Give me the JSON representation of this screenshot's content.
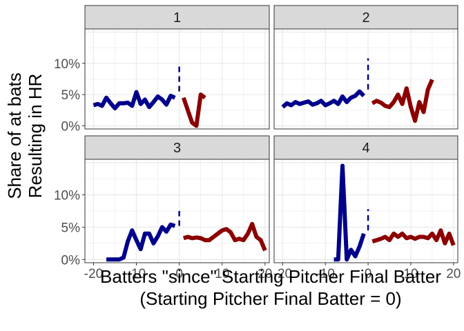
{
  "chart_data": {
    "type": "line",
    "facet_labels": [
      "1",
      "2",
      "3",
      "4"
    ],
    "xlabel_line1": "Batters \"since\" Starting Pitcher Final Batter",
    "xlabel_line2": "(Starting Pitcher Final Batter = 0)",
    "ylabel_line1": "Share of at bats",
    "ylabel_line2": "Resulting in HR",
    "xlim": [
      -22,
      21
    ],
    "ylim": [
      -0.005,
      0.155
    ],
    "x_ticks": [
      -20,
      -10,
      0,
      10,
      20
    ],
    "x_tick_labels": [
      "-20",
      "-10",
      "0",
      "10",
      "20"
    ],
    "y_ticks": [
      0,
      0.05,
      0.1
    ],
    "y_tick_labels": [
      "0%",
      "5%",
      "10%"
    ],
    "grid": true,
    "colors": {
      "before": "#00008B",
      "after": "#8B0000",
      "strip_fill": "#D9D9D9",
      "panel_border": "#333333",
      "grid": "#EBEBEB"
    },
    "facets": [
      {
        "label": "1",
        "before": {
          "x": [
            -20,
            -19,
            -18,
            -17,
            -16,
            -15,
            -14,
            -13,
            -12,
            -11,
            -10,
            -9,
            -8,
            -7,
            -6,
            -5,
            -4,
            -3,
            -2,
            -1
          ],
          "y": [
            0.033,
            0.035,
            0.032,
            0.045,
            0.036,
            0.028,
            0.036,
            0.036,
            0.037,
            0.032,
            0.054,
            0.035,
            0.042,
            0.03,
            0.038,
            0.047,
            0.042,
            0.034,
            0.048,
            0.045
          ]
        },
        "after": {
          "x": [
            1,
            2,
            3,
            4,
            5,
            6
          ],
          "y": [
            0.045,
            0.025,
            0.005,
            0.0,
            0.05,
            0.045
          ]
        },
        "dashed": {
          "x": 0,
          "y": [
            0.055,
            0.095
          ]
        }
      },
      {
        "label": "2",
        "before": {
          "x": [
            -20,
            -19,
            -18,
            -17,
            -16,
            -15,
            -14,
            -13,
            -12,
            -11,
            -10,
            -9,
            -8,
            -7,
            -6,
            -5,
            -4,
            -3,
            -2,
            -1
          ],
          "y": [
            0.03,
            0.036,
            0.033,
            0.038,
            0.035,
            0.037,
            0.039,
            0.034,
            0.036,
            0.04,
            0.033,
            0.036,
            0.04,
            0.035,
            0.047,
            0.038,
            0.045,
            0.048,
            0.055,
            0.048
          ]
        },
        "after": {
          "x": [
            1,
            2,
            3,
            4,
            5,
            6,
            7,
            8,
            9,
            10,
            11,
            12,
            13,
            14,
            15
          ],
          "y": [
            0.036,
            0.04,
            0.037,
            0.032,
            0.03,
            0.038,
            0.05,
            0.035,
            0.06,
            0.03,
            0.008,
            0.038,
            0.022,
            0.058,
            0.074
          ]
        },
        "dashed": {
          "x": 0,
          "y": [
            0.058,
            0.108
          ]
        }
      },
      {
        "label": "3",
        "before": {
          "x": [
            -17,
            -16,
            -15,
            -14,
            -13,
            -12,
            -11,
            -10,
            -9,
            -8,
            -7,
            -6,
            -5,
            -4,
            -3,
            -2,
            -1
          ],
          "y": [
            0.0,
            0.0,
            0.0,
            0.0,
            0.003,
            0.028,
            0.045,
            0.03,
            0.016,
            0.04,
            0.04,
            0.025,
            0.036,
            0.05,
            0.043,
            0.054,
            0.052
          ]
        },
        "after": {
          "x": [
            1,
            2,
            3,
            4,
            5,
            6,
            7,
            8,
            9,
            10,
            11,
            12,
            13,
            14,
            15,
            16,
            17,
            18,
            19,
            20
          ],
          "y": [
            0.033,
            0.035,
            0.033,
            0.034,
            0.033,
            0.03,
            0.03,
            0.035,
            0.04,
            0.045,
            0.047,
            0.042,
            0.03,
            0.032,
            0.03,
            0.04,
            0.055,
            0.035,
            0.03,
            0.014
          ]
        },
        "dashed": {
          "x": 0,
          "y": [
            0.052,
            0.075
          ]
        }
      },
      {
        "label": "4",
        "before": {
          "x": [
            -8,
            -7,
            -6,
            -5,
            -4,
            -3,
            -2,
            -1
          ],
          "y": [
            0.0,
            0.0,
            0.145,
            0.0,
            0.015,
            0.005,
            0.02,
            0.04
          ]
        },
        "after": {
          "x": [
            1,
            2,
            3,
            4,
            5,
            6,
            7,
            8,
            9,
            10,
            11,
            12,
            13,
            14,
            15,
            16,
            17,
            18,
            19,
            20
          ],
          "y": [
            0.028,
            0.03,
            0.032,
            0.035,
            0.03,
            0.04,
            0.035,
            0.04,
            0.033,
            0.035,
            0.032,
            0.035,
            0.035,
            0.033,
            0.04,
            0.03,
            0.045,
            0.025,
            0.04,
            0.022
          ]
        },
        "dashed": {
          "x": 0,
          "y": [
            0.045,
            0.078
          ]
        }
      }
    ]
  }
}
